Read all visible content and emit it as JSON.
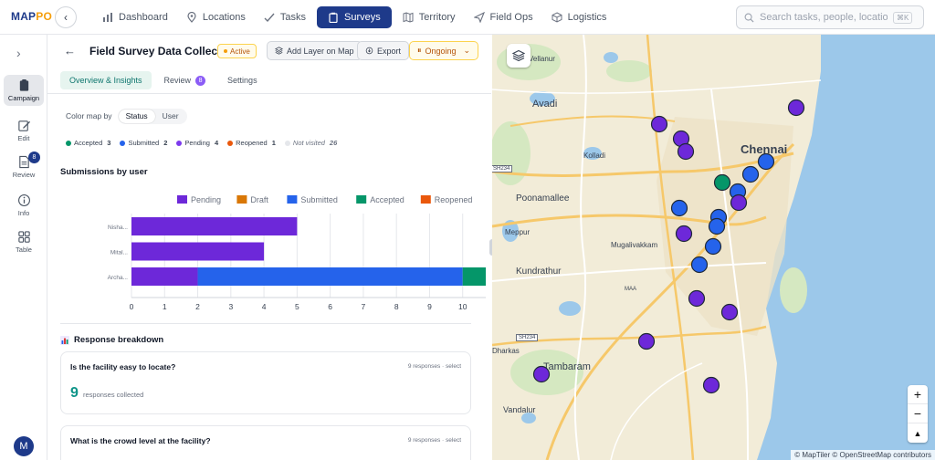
{
  "app": {
    "logo_main": "MAP",
    "logo_accent": "PO"
  },
  "nav": {
    "items": [
      {
        "label": "Dashboard",
        "icon": "bar-chart-icon"
      },
      {
        "label": "Locations",
        "icon": "pin-icon"
      },
      {
        "label": "Tasks",
        "icon": "check-icon"
      },
      {
        "label": "Surveys",
        "icon": "clipboard-icon",
        "active": true
      },
      {
        "label": "Territory",
        "icon": "map-icon"
      },
      {
        "label": "Field Ops",
        "icon": "send-icon"
      },
      {
        "label": "Logistics",
        "icon": "box-icon"
      }
    ]
  },
  "search": {
    "placeholder": "Search tasks, people, locations...",
    "shortcut": "⌘K"
  },
  "rail": {
    "items": [
      {
        "label": "Campaign",
        "icon": "clipboard-icon",
        "active": true
      },
      {
        "label": "Edit",
        "icon": "edit-icon"
      },
      {
        "label": "Review",
        "icon": "document-icon",
        "badge": "8"
      },
      {
        "label": "Info",
        "icon": "info-icon"
      },
      {
        "label": "Table",
        "icon": "grid-icon"
      }
    ],
    "avatar_initial": "M"
  },
  "panel": {
    "title": "Field Survey Data Collect...",
    "status_badge": "Active",
    "add_layer_label": "Add Layer on Map",
    "export_label": "Export",
    "ongoing_label": "Ongoing",
    "tabs": [
      {
        "label": "Overview & Insights",
        "active": true
      },
      {
        "label": "Review",
        "badge": "8"
      },
      {
        "label": "Settings"
      }
    ],
    "color_map_label": "Color map by",
    "color_map_options": [
      "Status",
      "User"
    ],
    "status_legend": [
      {
        "label": "Accepted",
        "count": "3",
        "color": "#059669"
      },
      {
        "label": "Submitted",
        "count": "2",
        "color": "#2563eb"
      },
      {
        "label": "Pending",
        "count": "4",
        "color": "#7c3aed"
      },
      {
        "label": "Reopened",
        "count": "1",
        "color": "#ea580c"
      },
      {
        "label": "Not visited",
        "count": "26",
        "color": "#e5e7eb"
      }
    ],
    "submissions_title": "Submissions by user",
    "breakdown_title": "Response breakdown",
    "questions": [
      {
        "question": "Is the facility easy to locate?",
        "meta": "9 responses · select",
        "count": "9",
        "sub": "responses collected"
      },
      {
        "question": "What is the crowd level at the facility?",
        "meta": "9 responses · select"
      }
    ]
  },
  "chart_data": {
    "type": "bar",
    "orientation": "horizontal",
    "stacked": true,
    "categories": [
      "Nisha...",
      "Mital...",
      "Archa..."
    ],
    "series": [
      {
        "name": "Pending",
        "color": "#6d28d9",
        "values": [
          5,
          4,
          2
        ]
      },
      {
        "name": "Draft",
        "color": "#d97706",
        "values": [
          0,
          0,
          0
        ]
      },
      {
        "name": "Submitted",
        "color": "#2563eb",
        "values": [
          0,
          0,
          8
        ]
      },
      {
        "name": "Accepted",
        "color": "#059669",
        "values": [
          0,
          0,
          1
        ]
      },
      {
        "name": "Reopened",
        "color": "#ea580c",
        "values": [
          0,
          0,
          0
        ]
      }
    ],
    "xlim": [
      0,
      11
    ],
    "xticks": [
      0,
      1,
      2,
      3,
      4,
      5,
      6,
      7,
      8,
      9,
      10,
      11
    ],
    "legend_position": "top",
    "grid": true
  },
  "map": {
    "labels": [
      "Vellanur",
      "Avadi",
      "Chennai",
      "Kolladi",
      "Poonamallee",
      "Meppur",
      "Mugalivakkam",
      "Kundrathur",
      "MAA",
      "Dharkas",
      "Tambaram",
      "Vandalur"
    ],
    "road_tags": [
      "SH234",
      "SH234"
    ],
    "attribution": "© MapTiler © OpenStreetMap contributors",
    "zoom_in": "+",
    "zoom_out": "−",
    "compass": "▲",
    "markers": [
      {
        "status": "Pending"
      },
      {
        "status": "Pending"
      },
      {
        "status": "Pending"
      },
      {
        "status": "Pending"
      },
      {
        "status": "Submitted"
      },
      {
        "status": "Submitted"
      },
      {
        "status": "Accepted"
      },
      {
        "status": "Submitted"
      },
      {
        "status": "Pending"
      },
      {
        "status": "Submitted"
      },
      {
        "status": "Submitted"
      },
      {
        "status": "Submitted"
      },
      {
        "status": "Pending"
      },
      {
        "status": "Submitted"
      },
      {
        "status": "Submitted"
      },
      {
        "status": "Pending"
      },
      {
        "status": "Pending"
      },
      {
        "status": "Pending"
      },
      {
        "status": "Pending"
      },
      {
        "status": "Pending"
      }
    ]
  }
}
